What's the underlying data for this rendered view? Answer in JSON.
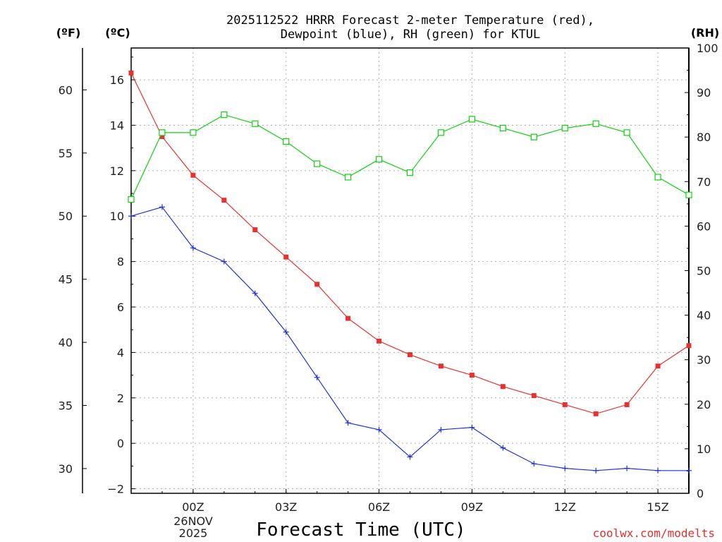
{
  "chart_data": {
    "type": "line",
    "title_line1": "2025112522 HRRR Forecast 2-meter Temperature (red),",
    "title_line2": "Dewpoint (blue), RH (green) for KTUL",
    "xlabel": "Forecast Time (UTC)",
    "credit": "coolwx.com/modelts",
    "date_label": [
      "26NOV",
      "2025"
    ],
    "unit_labels": {
      "fahrenheit": "(ºF)",
      "celsius": "(ºC)",
      "rh": "(RH)"
    },
    "x_hours": [
      0,
      1,
      2,
      3,
      4,
      5,
      6,
      7,
      8,
      9,
      10,
      11,
      12,
      13,
      14,
      15,
      16,
      17,
      18
    ],
    "x_range": [
      0,
      18
    ],
    "x_ticks": [
      {
        "hour": 2,
        "label": "00Z"
      },
      {
        "hour": 5,
        "label": "03Z"
      },
      {
        "hour": 8,
        "label": "06Z"
      },
      {
        "hour": 11,
        "label": "09Z"
      },
      {
        "hour": 14,
        "label": "12Z"
      },
      {
        "hour": 17,
        "label": "15Z"
      }
    ],
    "ylim_celsius": [
      -2.2,
      17.4
    ],
    "y_ticks_celsius": [
      -2,
      0,
      2,
      4,
      6,
      8,
      10,
      12,
      14,
      16
    ],
    "y_ticks_fahrenheit": [
      30,
      35,
      40,
      45,
      50,
      55,
      60
    ],
    "ylim_rh": [
      0,
      100
    ],
    "y_ticks_rh": [
      0,
      10,
      20,
      30,
      40,
      50,
      60,
      70,
      80,
      90,
      100
    ],
    "series": [
      {
        "name": "Temperature",
        "axis": "celsius",
        "color": "#e83030",
        "marker": "filled-square",
        "values": [
          16.3,
          13.5,
          11.8,
          10.7,
          9.4,
          8.2,
          7.0,
          5.5,
          4.5,
          3.9,
          3.4,
          3.0,
          2.5,
          2.1,
          1.7,
          1.3,
          1.7,
          3.4,
          4.3
        ]
      },
      {
        "name": "Dewpoint",
        "axis": "celsius",
        "color": "#2030e0",
        "marker": "plus",
        "values": [
          10.0,
          10.4,
          8.6,
          8.0,
          6.6,
          4.9,
          2.9,
          0.9,
          0.6,
          -0.6,
          0.6,
          0.7,
          -0.2,
          -0.9,
          -1.1,
          -1.2,
          -1.1,
          -1.2,
          -1.2
        ]
      },
      {
        "name": "RH",
        "axis": "rh",
        "color": "#10d010",
        "marker": "open-square",
        "values": [
          66,
          81,
          81,
          85,
          83,
          79,
          74,
          71,
          75,
          72,
          81,
          84,
          82,
          80,
          82,
          83,
          81,
          71,
          67
        ]
      }
    ]
  }
}
